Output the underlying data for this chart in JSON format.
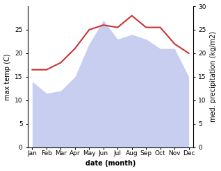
{
  "months": [
    "Jan",
    "Feb",
    "Mar",
    "Apr",
    "May",
    "Jun",
    "Jul",
    "Aug",
    "Sep",
    "Oct",
    "Nov",
    "Dec"
  ],
  "temperature": [
    16.5,
    16.5,
    18.0,
    21.0,
    25.0,
    26.0,
    25.5,
    28.0,
    25.5,
    25.5,
    22.0,
    20.0
  ],
  "precipitation": [
    14.0,
    11.5,
    12.0,
    15.0,
    22.0,
    27.0,
    23.0,
    24.0,
    23.0,
    21.0,
    21.0,
    15.0
  ],
  "temp_color": "#cc3333",
  "precip_fill_color": "#c8cef0",
  "ylim": [
    0,
    30
  ],
  "left_yticks": [
    0,
    5,
    10,
    15,
    20,
    25
  ],
  "right_yticks": [
    0,
    5,
    10,
    15,
    20,
    25,
    30
  ],
  "xlabel": "date (month)",
  "ylabel_left": "max temp (C)",
  "ylabel_right": "med. precipitation (kg/m2)",
  "label_fontsize": 7,
  "tick_fontsize": 6.5
}
